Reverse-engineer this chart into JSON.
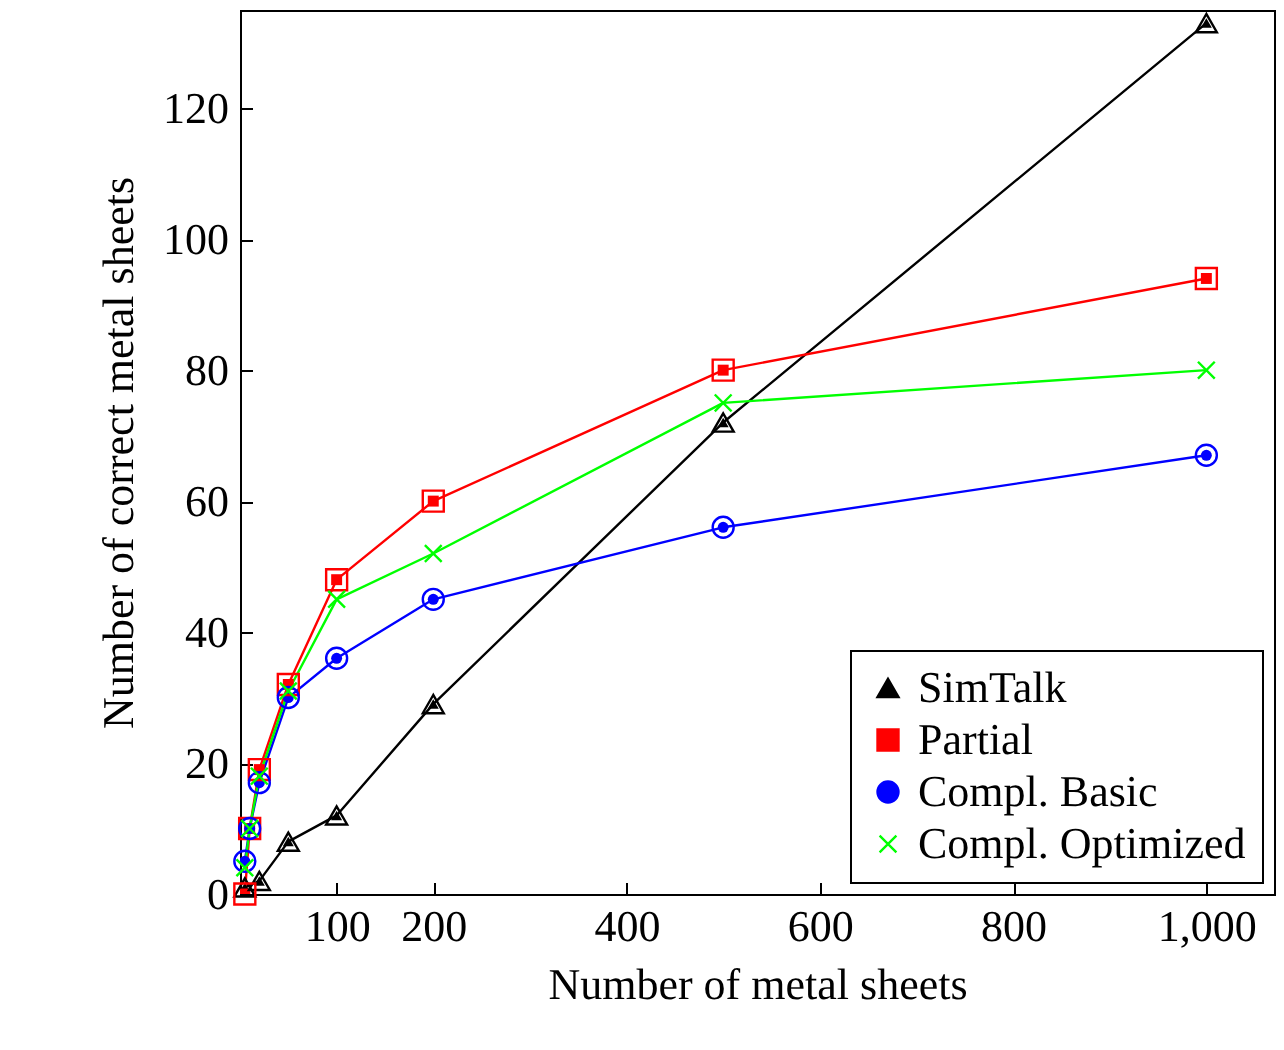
{
  "chart_data": {
    "type": "line",
    "xlabel": "Number of metal sheets",
    "ylabel": "Number of correct metal sheets",
    "xlim": [
      0,
      1070
    ],
    "ylim": [
      0,
      135
    ],
    "xticks": [
      100,
      200,
      400,
      600,
      800,
      {
        "value": 1000,
        "label": "1,000"
      }
    ],
    "yticks": [
      0,
      20,
      40,
      60,
      80,
      100,
      120
    ],
    "grid": false,
    "legend": "bottom right",
    "series": [
      {
        "name": "SimTalk",
        "color": "#000000",
        "marker": "triangle",
        "x": [
          5,
          20,
          50,
          100,
          200,
          500,
          1000
        ],
        "values": [
          1,
          2,
          8,
          12,
          29,
          72,
          133
        ]
      },
      {
        "name": "Partial",
        "color": "#ff0000",
        "marker": "square",
        "x": [
          5,
          10,
          20,
          50,
          100,
          200,
          500,
          1000
        ],
        "values": [
          0,
          10,
          19,
          32,
          48,
          60,
          80,
          94
        ]
      },
      {
        "name": "Compl. Basic",
        "color": "#0000ff",
        "marker": "circle",
        "x": [
          5,
          10,
          20,
          50,
          100,
          200,
          500,
          1000
        ],
        "values": [
          5,
          10,
          17,
          30,
          36,
          45,
          56,
          67
        ]
      },
      {
        "name": "Compl. Optimized",
        "color": "#00ff00",
        "marker": "cross",
        "x": [
          5,
          10,
          20,
          50,
          100,
          200,
          500,
          1000
        ],
        "values": [
          4,
          10,
          18,
          31,
          45,
          52,
          75,
          80
        ]
      }
    ]
  }
}
